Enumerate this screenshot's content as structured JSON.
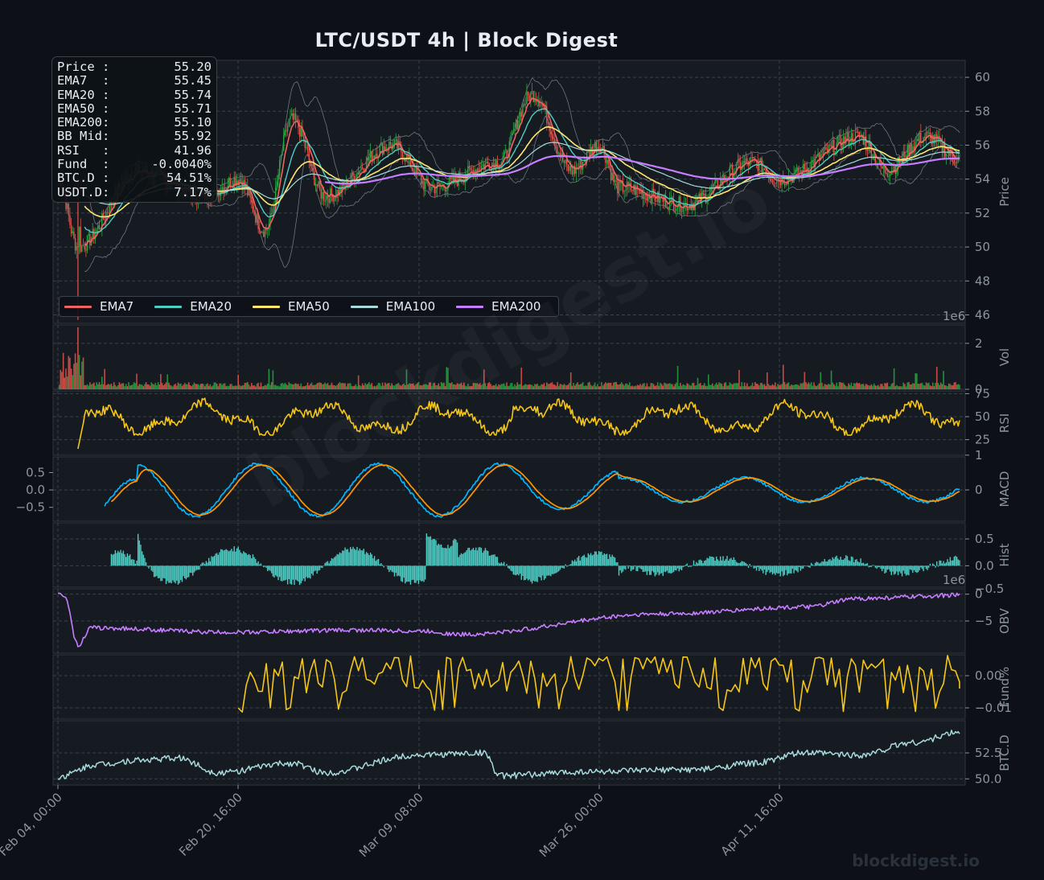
{
  "title": "LTC/USDT  4h  |  Block Digest",
  "watermark": "blockdigest.io",
  "info_box": [
    {
      "label": "Price :",
      "value": "55.20"
    },
    {
      "label": "EMA7  :",
      "value": "55.45"
    },
    {
      "label": "EMA20 :",
      "value": "55.74"
    },
    {
      "label": "EMA50 :",
      "value": "55.71"
    },
    {
      "label": "EMA200:",
      "value": "55.10"
    },
    {
      "label": "BB Mid:",
      "value": "55.92"
    },
    {
      "label": "RSI   :",
      "value": "41.96"
    },
    {
      "label": "Fund  :",
      "value": "-0.0040%"
    },
    {
      "label": "BTC.D :",
      "value": "54.51%"
    },
    {
      "label": "USDT.D:",
      "value": "7.17%"
    }
  ],
  "legend": [
    {
      "label": "EMA7",
      "color": "#ef6461"
    },
    {
      "label": "EMA20",
      "color": "#4ecdc4"
    },
    {
      "label": "EMA50",
      "color": "#ffe66d"
    },
    {
      "label": "EMA100",
      "color": "#a8dadc"
    },
    {
      "label": "EMA200",
      "color": "#c77dff"
    }
  ],
  "colors": {
    "background": "#0d1117",
    "panel": "#161b22",
    "up": "#26a641",
    "down": "#e5534b",
    "rsi": "#f5c518",
    "macd": "#00b4ff",
    "signal": "#ff9500",
    "hist": "#4ecdc4",
    "obv": "#c77dff",
    "fund": "#f5c518",
    "btcd": "#a8dadc"
  },
  "chart_data": {
    "type": "line",
    "x_ticks": [
      "Feb 04, 00:00",
      "Feb 20, 16:00",
      "Mar 09, 08:00",
      "Mar 26, 00:00",
      "Apr 11, 16:00"
    ],
    "panels": [
      {
        "id": "price",
        "ylabel": "Price",
        "ticks": [
          "46",
          "48",
          "50",
          "52",
          "54",
          "56",
          "58",
          "60"
        ],
        "ylim": [
          45.5,
          61
        ],
        "type": "candlestick",
        "approx_close_path": [
          {
            "x": "Feb 04, 00:00",
            "close": 54.0
          },
          {
            "x": "Feb 06",
            "close": 50.0
          },
          {
            "x": "Feb 11",
            "close": 54.5
          },
          {
            "x": "Feb 16",
            "close": 53.0
          },
          {
            "x": "Feb 20, 16:00",
            "close": 54.0
          },
          {
            "x": "Feb 23",
            "close": 51.0
          },
          {
            "x": "Feb 25",
            "close": 57.5
          },
          {
            "x": "Feb 28",
            "close": 53.0
          },
          {
            "x": "Mar 05",
            "close": 56.0
          },
          {
            "x": "Mar 09, 08:00",
            "close": 53.5
          },
          {
            "x": "Mar 15",
            "close": 55.0
          },
          {
            "x": "Mar 18",
            "close": 59.0
          },
          {
            "x": "Mar 21",
            "close": 54.5
          },
          {
            "x": "Mar 26, 00:00",
            "close": 56.0
          },
          {
            "x": "Mar 29",
            "close": 53.5
          },
          {
            "x": "Apr 03",
            "close": 52.5
          },
          {
            "x": "Apr 08",
            "close": 55.0
          },
          {
            "x": "Apr 11, 16:00",
            "close": 54.0
          },
          {
            "x": "Apr 18",
            "close": 56.5
          },
          {
            "x": "Apr 22",
            "close": 54.5
          },
          {
            "x": "Apr 28",
            "close": 56.5
          },
          {
            "x": "May 01",
            "close": 55.2
          }
        ],
        "series": [
          {
            "name": "EMA7",
            "last": 55.45
          },
          {
            "name": "EMA20",
            "last": 55.74
          },
          {
            "name": "EMA50",
            "last": 55.71
          },
          {
            "name": "EMA100",
            "last": 55.6
          },
          {
            "name": "EMA200",
            "last": 55.1
          }
        ]
      },
      {
        "id": "vol",
        "ylabel": "Vol",
        "ticks": [
          "0",
          "2"
        ],
        "ylim": [
          0,
          2.8
        ],
        "offset_label": "1e6",
        "approx_peak": 2.7
      },
      {
        "id": "rsi",
        "ylabel": "RSI",
        "ticks": [
          "25",
          "50",
          "75"
        ],
        "ylim": [
          8,
          78
        ],
        "range": [
          15,
          75
        ]
      },
      {
        "id": "macd",
        "ylabel": "MACD",
        "ticks_right": [
          "0",
          "1"
        ],
        "ticks_left": [
          "0.5",
          "0.0",
          "−0.5"
        ],
        "ylim": [
          -0.9,
          0.95
        ]
      },
      {
        "id": "hist",
        "ylabel": "Hist",
        "ticks": [
          "0.0",
          "0.5"
        ],
        "ylim": [
          -0.4,
          0.8
        ]
      },
      {
        "id": "obv",
        "ylabel": "OBV",
        "ticks": [
          "−5",
          "0"
        ],
        "offset_label": "1e6",
        "extra_tick": "−0.5",
        "ylim": [
          -11,
          1
        ]
      },
      {
        "id": "fund",
        "ylabel": "Fund%",
        "ticks": [
          "−0.01",
          "0.00"
        ],
        "ylim": [
          -0.0135,
          0.0065
        ]
      },
      {
        "id": "btcd",
        "ylabel": "BTC.D",
        "ticks": [
          "50.0",
          "52.5"
        ],
        "ylim": [
          49.4,
          55.6
        ]
      }
    ]
  }
}
